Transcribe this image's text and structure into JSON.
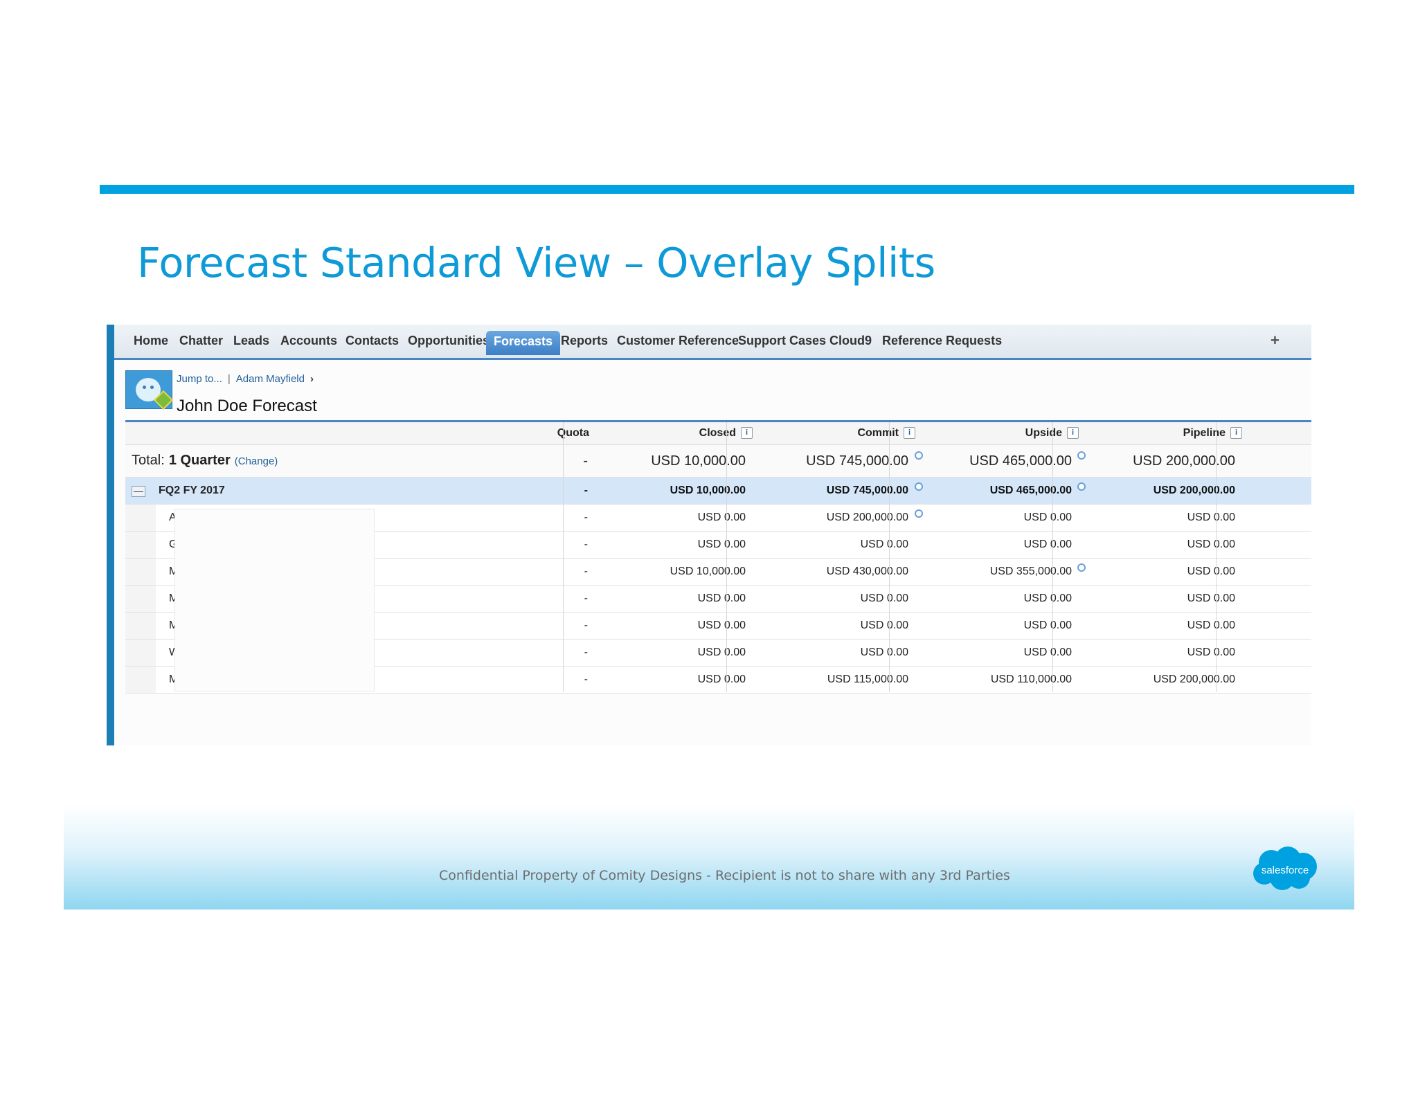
{
  "slide": {
    "title": "Forecast Standard View – Overlay Splits",
    "footer": "Confidential Property of Comity Designs - Recipient is not to share with any 3rd Parties",
    "logo_text": "salesforce",
    "accent_color": "#00a1e0"
  },
  "nav": {
    "tabs": [
      "Home",
      "Chatter",
      "Leads",
      "Accounts",
      "Contacts",
      "Opportunities",
      "Forecasts",
      "Reports",
      "Customer Reference",
      "Support Cases",
      "Cloud9",
      "Reference Requests"
    ],
    "active_tab": "Forecasts",
    "plus": "+"
  },
  "breadcrumb": {
    "jump": "Jump to...",
    "sep": "|",
    "user": "Adam Mayfield",
    "arrow": "›"
  },
  "page_title": "John Doe Forecast",
  "table": {
    "headers": {
      "quota": "Quota",
      "closed": "Closed",
      "commit": "Commit",
      "upside": "Upside",
      "pipeline": "Pipeline",
      "info": "i"
    },
    "total": {
      "label": "Total:",
      "range": "1 Quarter",
      "change": "(Change)",
      "quota": "-",
      "closed": "USD 10,000.00",
      "commit": "USD 745,000.00",
      "upside": "USD 465,000.00",
      "pipeline": "USD 200,000.00"
    },
    "period": {
      "toggle": "—",
      "label": "FQ2 FY 2017",
      "quota": "-",
      "closed": "USD 10,000.00",
      "commit": "USD 745,000.00",
      "upside": "USD 465,000.00",
      "pipeline": "USD 200,000.00"
    },
    "rows": [
      {
        "initial": "A",
        "quota": "-",
        "closed": "USD 0.00",
        "commit": "USD 200,000.00",
        "upside": "USD 0.00",
        "pipeline": "USD 0.00"
      },
      {
        "initial": "G",
        "quota": "-",
        "closed": "USD 0.00",
        "commit": "USD 0.00",
        "upside": "USD 0.00",
        "pipeline": "USD 0.00"
      },
      {
        "initial": "M",
        "quota": "-",
        "closed": "USD 10,000.00",
        "commit": "USD 430,000.00",
        "upside": "USD 355,000.00",
        "pipeline": "USD 0.00"
      },
      {
        "initial": "M",
        "quota": "-",
        "closed": "USD 0.00",
        "commit": "USD 0.00",
        "upside": "USD 0.00",
        "pipeline": "USD 0.00"
      },
      {
        "initial": "M",
        "quota": "-",
        "closed": "USD 0.00",
        "commit": "USD 0.00",
        "upside": "USD 0.00",
        "pipeline": "USD 0.00"
      },
      {
        "initial": "W",
        "quota": "-",
        "closed": "USD 0.00",
        "commit": "USD 0.00",
        "upside": "USD 0.00",
        "pipeline": "USD 0.00"
      },
      {
        "initial": "M",
        "quota": "-",
        "closed": "USD 0.00",
        "commit": "USD 115,000.00",
        "upside": "USD 110,000.00",
        "pipeline": "USD 200,000.00"
      }
    ]
  }
}
